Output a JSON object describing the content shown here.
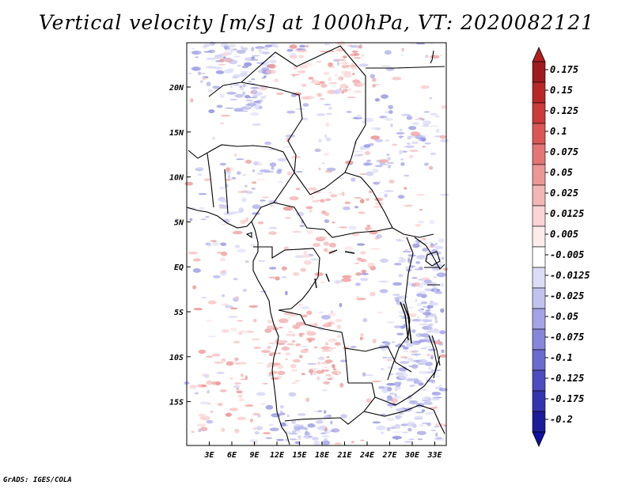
{
  "title": "Vertical velocity [m/s] at 1000hPa, VT: 2020082121",
  "credit": "GrADS: IGES/COLA",
  "map": {
    "lat_labels": [
      "20N",
      "15N",
      "10N",
      "5N",
      "EQ",
      "5S",
      "10S",
      "15S"
    ],
    "lon_labels": [
      "3E",
      "6E",
      "9E",
      "12E",
      "15E",
      "18E",
      "21E",
      "24E",
      "27E",
      "30E",
      "33E"
    ]
  },
  "colorbar": {
    "labels": [
      "0.175",
      "0.15",
      "0.125",
      "0.1",
      "0.075",
      "0.05",
      "0.025",
      "0.0125",
      "0.005",
      "-0.005",
      "-0.0125",
      "-0.025",
      "-0.05",
      "-0.075",
      "-0.1",
      "-0.125",
      "-0.175",
      "-0.2"
    ],
    "colors": [
      "#9e1b1b",
      "#b82727",
      "#cc3a3a",
      "#dc5656",
      "#e47575",
      "#ec9696",
      "#f3b6b6",
      "#f8d4d4",
      "#fcecec",
      "#ffffff",
      "#dcdcf6",
      "#c2c2ef",
      "#a3a3e6",
      "#8686dc",
      "#6a6acf",
      "#4d4dbf",
      "#3434ae",
      "#1c1c9a"
    ],
    "top_arrow_color": "#b02020",
    "bottom_arrow_color": "#1010a0"
  }
}
